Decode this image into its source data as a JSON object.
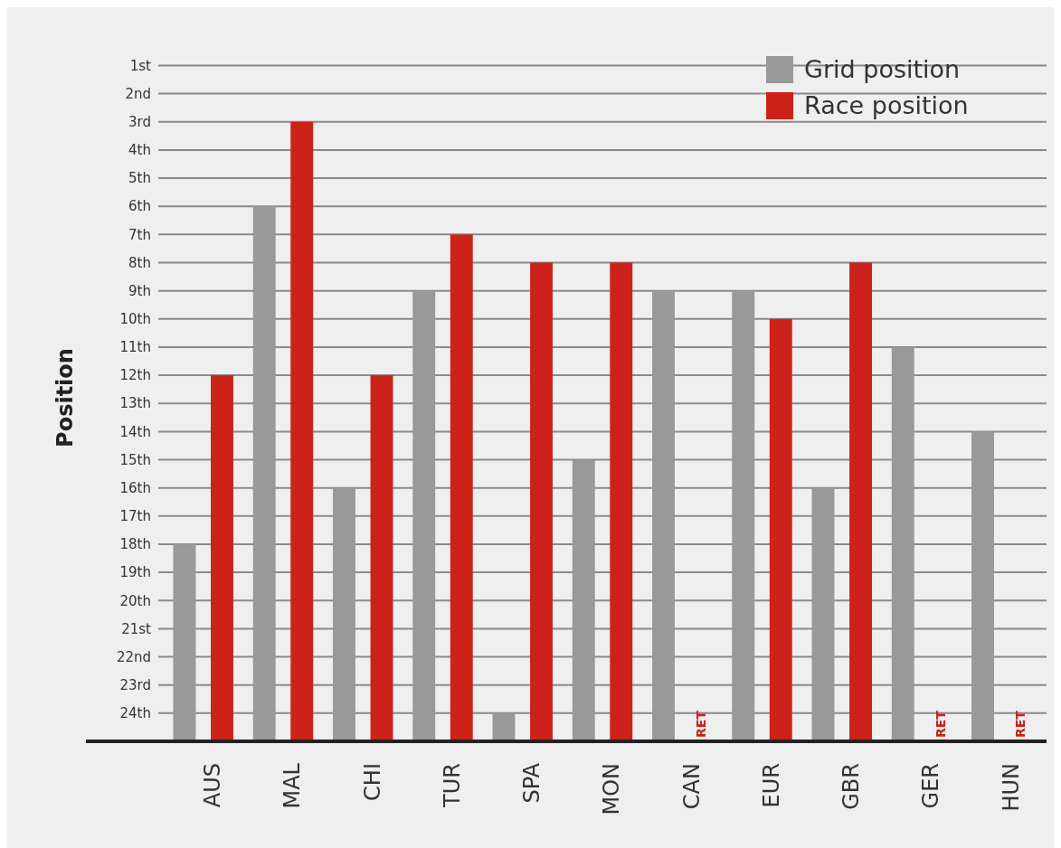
{
  "chart_data": {
    "type": "bar",
    "ylabel": "Position",
    "categories": [
      "AUS",
      "MAL",
      "CHI",
      "TUR",
      "SPA",
      "MON",
      "CAN",
      "EUR",
      "GBR",
      "GER",
      "HUN"
    ],
    "series": [
      {
        "name": "Grid position",
        "color": "#999999",
        "values": [
          -7,
          -19,
          -9,
          -16,
          -1,
          -10,
          -16,
          -16,
          -9,
          -14,
          -11
        ],
        "base": [
          25,
          25,
          25,
          25,
          25,
          25,
          25,
          25,
          25,
          25,
          25
        ]
      },
      {
        "name": "Race position",
        "color": "#cc2219",
        "values": [
          -13,
          -22,
          -13,
          -18,
          -17,
          -17,
          null,
          -15,
          -17,
          null,
          null
        ],
        "base": [
          25,
          25,
          25,
          25,
          25,
          25,
          null,
          25,
          25,
          null,
          null
        ],
        "value_labels": [
          null,
          null,
          null,
          null,
          null,
          null,
          "RET",
          null,
          null,
          "RET",
          "RET"
        ]
      }
    ],
    "ylim": [
      25,
      0.6
    ],
    "yticks": [
      {
        "value": 1,
        "label": "1st"
      },
      {
        "value": 2,
        "label": "2nd"
      },
      {
        "value": 3,
        "label": "3rd"
      },
      {
        "value": 4,
        "label": "4th"
      },
      {
        "value": 5,
        "label": "5th"
      },
      {
        "value": 6,
        "label": "6th"
      },
      {
        "value": 7,
        "label": "7th"
      },
      {
        "value": 8,
        "label": "8th"
      },
      {
        "value": 9,
        "label": "9th"
      },
      {
        "value": 10,
        "label": "10th"
      },
      {
        "value": 11,
        "label": "11th"
      },
      {
        "value": 12,
        "label": "12th"
      },
      {
        "value": 13,
        "label": "13th"
      },
      {
        "value": 14,
        "label": "14th"
      },
      {
        "value": 15,
        "label": "15th"
      },
      {
        "value": 16,
        "label": "16th"
      },
      {
        "value": 17,
        "label": "17th"
      },
      {
        "value": 18,
        "label": "18th"
      },
      {
        "value": 19,
        "label": "19th"
      },
      {
        "value": 20,
        "label": "20th"
      },
      {
        "value": 21,
        "label": "21st"
      },
      {
        "value": 22,
        "label": "22nd"
      },
      {
        "value": 23,
        "label": "23rd"
      },
      {
        "value": 24,
        "label": "24th"
      }
    ],
    "grid": "y",
    "legend": "top right"
  }
}
